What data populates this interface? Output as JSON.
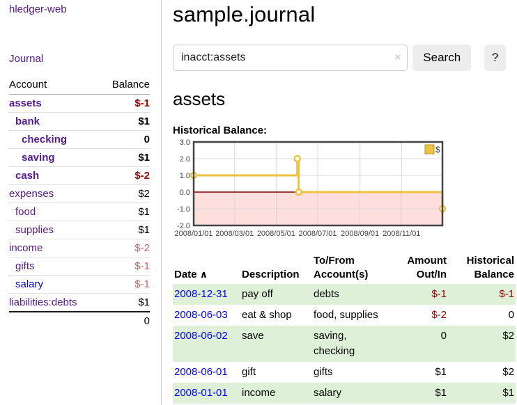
{
  "sidebar": {
    "app_title": "hledger-web",
    "journal_link": "Journal",
    "accounts_table": {
      "account_header": "Account",
      "balance_header": "Balance",
      "rows": [
        {
          "name": "assets",
          "indent": 1,
          "bold": true,
          "balance": "$-1",
          "neg": "strong"
        },
        {
          "name": "bank",
          "indent": 2,
          "bold": true,
          "balance": "$1"
        },
        {
          "name": "checking",
          "indent": 3,
          "bold": true,
          "balance": "0"
        },
        {
          "name": "saving",
          "indent": 3,
          "bold": true,
          "balance": "$1"
        },
        {
          "name": "cash",
          "indent": 2,
          "bold": true,
          "balance": "$-2",
          "neg": "strong"
        },
        {
          "name": "expenses",
          "indent": 1,
          "bold": false,
          "balance": "$2"
        },
        {
          "name": "food",
          "indent": 2,
          "bold": false,
          "balance": "$1"
        },
        {
          "name": "supplies",
          "indent": 2,
          "bold": false,
          "balance": "$1"
        },
        {
          "name": "income",
          "indent": 1,
          "bold": false,
          "balance": "$-2",
          "neg": "soft"
        },
        {
          "name": "gifts",
          "indent": 2,
          "bold": false,
          "balance": "$-1",
          "neg": "soft"
        },
        {
          "name": "salary",
          "indent": 2,
          "bold": false,
          "balance": "$-1",
          "neg": "soft",
          "link_color": "blue"
        },
        {
          "name": "liabilities:debts",
          "indent": 1,
          "bold": false,
          "balance": "$1"
        }
      ],
      "total": "0"
    }
  },
  "header": {
    "title": "sample.journal"
  },
  "search": {
    "query": "inacct:assets",
    "clear_icon": "×",
    "button_label": "Search",
    "help_label": "?"
  },
  "account_page": {
    "title": "assets",
    "chart_heading": "Historical Balance:"
  },
  "chart_data": {
    "type": "line",
    "step": true,
    "title": "Historical Balance:",
    "series": [
      {
        "name": "$",
        "color": "#EDC240",
        "points": [
          [
            "2008-01-01",
            1
          ],
          [
            "2008-06-01",
            2
          ],
          [
            "2008-06-03",
            0
          ],
          [
            "2008-12-31",
            -1
          ]
        ]
      }
    ],
    "x_range": [
      "2008-01-01",
      "2008-12-31"
    ],
    "x_ticks": [
      {
        "date": "2008-01-01",
        "label": "2008/01/01"
      },
      {
        "date": "2008-03-01",
        "label": "2008/03/01"
      },
      {
        "date": "2008-05-01",
        "label": "2008/05/01"
      },
      {
        "date": "2008-07-01",
        "label": "2008/07/01"
      },
      {
        "date": "2008-09-01",
        "label": "2008/09/01"
      },
      {
        "date": "2008-11-01",
        "label": "2008/11/01"
      }
    ],
    "y_ticks": [
      3.0,
      2.0,
      1.0,
      0.0,
      -1.0,
      -2.0
    ],
    "ylim": [
      -2,
      3
    ],
    "grid": true,
    "legend_position": "top-right",
    "negative_fill": "#ffdede",
    "zero_line_color": "#800000",
    "border_color": "#444444",
    "gridline_color": "#d8d8d8"
  },
  "register_table": {
    "headers": {
      "date": "Date",
      "sort_caret": "∧",
      "description": "Description",
      "accounts": "To/From Account(s)",
      "amount": "Amount Out/In",
      "balance": "Historical Balance"
    },
    "rows": [
      {
        "date": "2008-12-31",
        "description": "pay off",
        "accounts": "debts",
        "amount": "$-1",
        "amount_neg": true,
        "balance": "$-1",
        "balance_neg": true
      },
      {
        "date": "2008-06-03",
        "description": "eat & shop",
        "accounts": "food, supplies",
        "amount": "$-2",
        "amount_neg": true,
        "balance": "0",
        "balance_neg": false
      },
      {
        "date": "2008-06-02",
        "description": "save",
        "accounts": "saving, checking",
        "amount": "0",
        "amount_neg": false,
        "balance": "$2",
        "balance_neg": false
      },
      {
        "date": "2008-06-01",
        "description": "gift",
        "accounts": "gifts",
        "amount": "$1",
        "amount_neg": false,
        "balance": "$2",
        "balance_neg": false
      },
      {
        "date": "2008-01-01",
        "description": "income",
        "accounts": "salary",
        "amount": "$1",
        "amount_neg": false,
        "balance": "$1",
        "balance_neg": false
      }
    ]
  }
}
